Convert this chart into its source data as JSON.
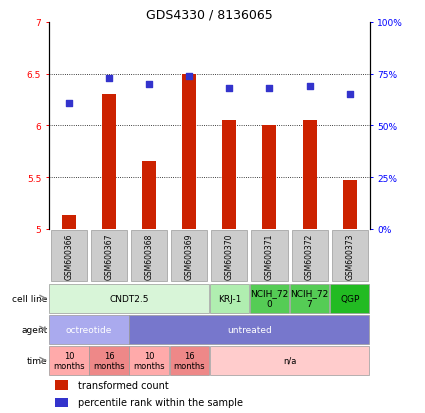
{
  "title": "GDS4330 / 8136065",
  "samples": [
    "GSM600366",
    "GSM600367",
    "GSM600368",
    "GSM600369",
    "GSM600370",
    "GSM600371",
    "GSM600372",
    "GSM600373"
  ],
  "bar_values": [
    5.13,
    6.3,
    5.65,
    6.5,
    6.05,
    6.0,
    6.05,
    5.47
  ],
  "dot_values": [
    61,
    73,
    70,
    74,
    68,
    68,
    69,
    65
  ],
  "bar_color": "#cc2200",
  "dot_color": "#3333cc",
  "ylim_left": [
    5,
    7
  ],
  "ylim_right": [
    0,
    100
  ],
  "yticks_left": [
    5,
    5.5,
    6,
    6.5,
    7
  ],
  "yticks_right": [
    0,
    25,
    50,
    75,
    100
  ],
  "cell_line_data": [
    {
      "label": "CNDT2.5",
      "span": [
        0,
        4
      ],
      "color": "#d8f5d8"
    },
    {
      "label": "KRJ-1",
      "span": [
        4,
        5
      ],
      "color": "#b0eeb0"
    },
    {
      "label": "NCIH_72\n0",
      "span": [
        5,
        6
      ],
      "color": "#55cc55"
    },
    {
      "label": "NCIH_72\n7",
      "span": [
        6,
        7
      ],
      "color": "#55cc55"
    },
    {
      "label": "QGP",
      "span": [
        7,
        8
      ],
      "color": "#22bb22"
    }
  ],
  "agent_data": [
    {
      "label": "octreotide",
      "span": [
        0,
        2
      ],
      "color": "#aaaaee"
    },
    {
      "label": "untreated",
      "span": [
        2,
        8
      ],
      "color": "#7777cc"
    }
  ],
  "time_data": [
    {
      "label": "10\nmonths",
      "span": [
        0,
        1
      ],
      "color": "#ffaaaa"
    },
    {
      "label": "16\nmonths",
      "span": [
        1,
        2
      ],
      "color": "#ee8888"
    },
    {
      "label": "10\nmonths",
      "span": [
        2,
        3
      ],
      "color": "#ffaaaa"
    },
    {
      "label": "16\nmonths",
      "span": [
        3,
        4
      ],
      "color": "#ee8888"
    },
    {
      "label": "n/a",
      "span": [
        4,
        8
      ],
      "color": "#ffcccc"
    }
  ],
  "row_labels": [
    "cell line",
    "agent",
    "time"
  ],
  "legend_bar_label": "transformed count",
  "legend_dot_label": "percentile rank within the sample",
  "bar_base": 5.0,
  "sample_box_color": "#cccccc",
  "bg_color": "#ffffff"
}
